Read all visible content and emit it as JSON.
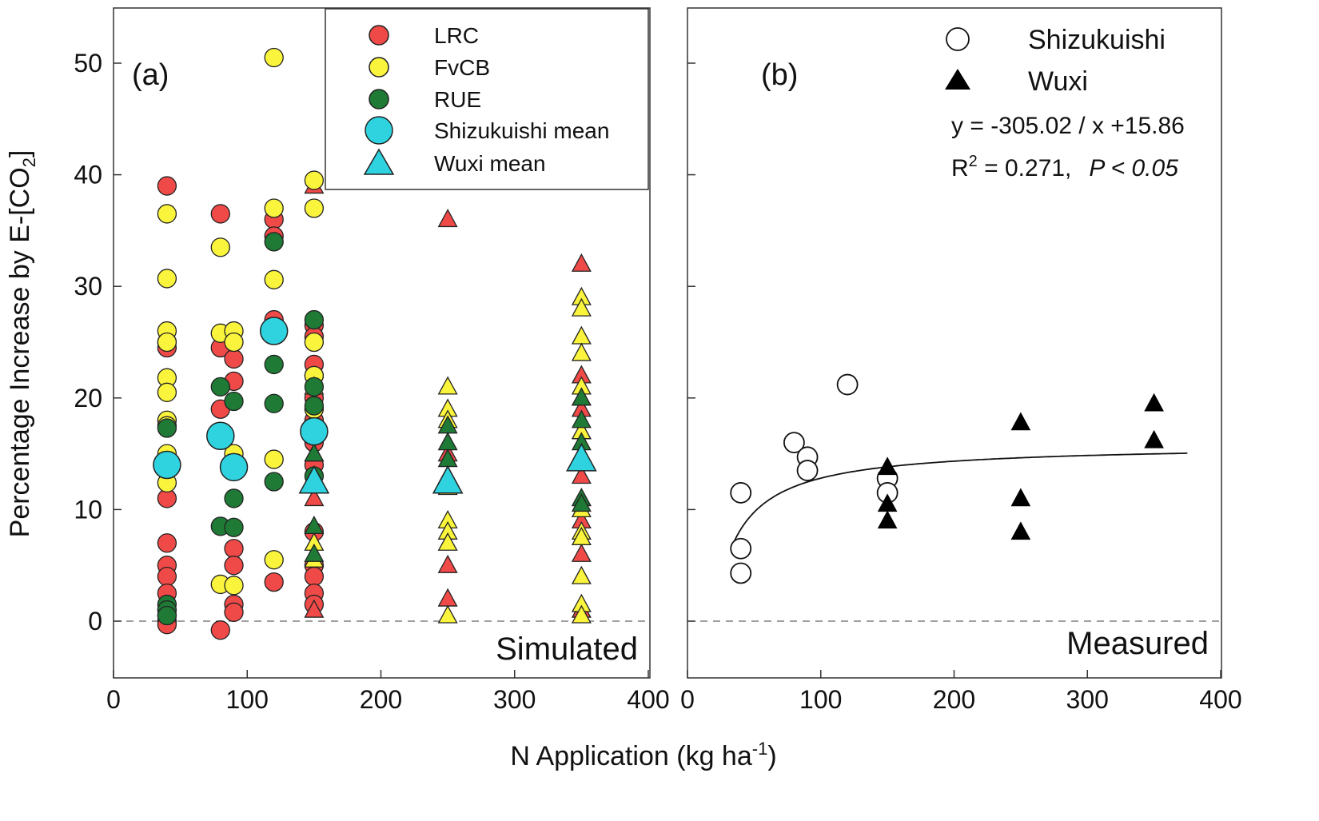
{
  "figure": {
    "y_axis_title_main": "Percentage Increase by E-[CO",
    "y_axis_title_sub": "2",
    "y_axis_title_end": "]",
    "x_axis_title_main": "N Application (kg ha",
    "x_axis_title_sup": "-1",
    "x_axis_title_end": ")"
  },
  "colors": {
    "LRC": "#f04a48",
    "FvCB": "#fbf43c",
    "RUE": "#1e7a35",
    "mean": "#2fd3df",
    "measured_triangle": "#000000",
    "measured_circle": "#ffffff"
  },
  "chart_data": [
    {
      "type": "scatter",
      "panel_label": "(a)",
      "corner_tag": "Simulated",
      "xlim": [
        0,
        400
      ],
      "ylim": [
        -5,
        55
      ],
      "x_ticks": [
        "0",
        "100",
        "200",
        "300",
        "400"
      ],
      "y_ticks": [
        "0",
        "10",
        "20",
        "30",
        "40",
        "50"
      ],
      "reference_line_y": 0,
      "legend": [
        "LRC",
        "FvCB",
        "RUE",
        "Shizukuishi mean",
        "Wuxi mean"
      ],
      "series": [
        {
          "name": "LRC",
          "marker": "circle",
          "color_key": "LRC",
          "points": [
            [
              40,
              39
            ],
            [
              40,
              25
            ],
            [
              40,
              24.5
            ],
            [
              40,
              11
            ],
            [
              40,
              7
            ],
            [
              40,
              5
            ],
            [
              40,
              4
            ],
            [
              40,
              2.5
            ],
            [
              40,
              1
            ],
            [
              40,
              0.5
            ],
            [
              40,
              0
            ],
            [
              40,
              -0.3
            ],
            [
              80,
              36.5
            ],
            [
              80,
              24.5
            ],
            [
              80,
              19
            ],
            [
              80,
              -0.8
            ],
            [
              90,
              23.5
            ],
            [
              90,
              21.5
            ],
            [
              90,
              6.5
            ],
            [
              90,
              5
            ],
            [
              90,
              1.5
            ],
            [
              90,
              0.8
            ],
            [
              120,
              36
            ],
            [
              120,
              34.5
            ],
            [
              120,
              27
            ],
            [
              120,
              3.5
            ],
            [
              150,
              26.5
            ],
            [
              150,
              25.5
            ],
            [
              150,
              23
            ],
            [
              150,
              22
            ],
            [
              150,
              20
            ],
            [
              150,
              18
            ],
            [
              150,
              16
            ],
            [
              150,
              14
            ],
            [
              150,
              8
            ],
            [
              150,
              5
            ],
            [
              150,
              4
            ],
            [
              150,
              2.5
            ],
            [
              150,
              1.5
            ]
          ]
        },
        {
          "name": "LRC",
          "marker": "triangle",
          "color_key": "LRC",
          "points": [
            [
              150,
              39
            ],
            [
              150,
              11
            ],
            [
              150,
              1
            ],
            [
              250,
              36
            ],
            [
              250,
              15
            ],
            [
              250,
              5
            ],
            [
              250,
              2
            ],
            [
              350,
              32
            ],
            [
              350,
              22
            ],
            [
              350,
              19
            ],
            [
              350,
              17
            ],
            [
              350,
              13
            ],
            [
              350,
              9
            ],
            [
              350,
              6
            ],
            [
              350,
              1
            ]
          ]
        },
        {
          "name": "FvCB",
          "marker": "circle",
          "color_key": "FvCB",
          "points": [
            [
              40,
              36.5
            ],
            [
              40,
              30.7
            ],
            [
              40,
              26
            ],
            [
              40,
              25
            ],
            [
              40,
              21.8
            ],
            [
              40,
              20.5
            ],
            [
              40,
              18
            ],
            [
              40,
              17.5
            ],
            [
              40,
              15
            ],
            [
              40,
              12.4
            ],
            [
              80,
              33.5
            ],
            [
              80,
              25.8
            ],
            [
              80,
              3.3
            ],
            [
              90,
              26
            ],
            [
              90,
              25
            ],
            [
              90,
              15
            ],
            [
              90,
              14
            ],
            [
              90,
              3.2
            ],
            [
              120,
              50.5
            ],
            [
              120,
              37
            ],
            [
              120,
              30.6
            ],
            [
              120,
              14.5
            ],
            [
              120,
              5.5
            ],
            [
              150,
              39.5
            ],
            [
              150,
              37
            ],
            [
              150,
              25
            ],
            [
              150,
              22
            ],
            [
              150,
              19
            ]
          ]
        },
        {
          "name": "FvCB",
          "marker": "triangle",
          "color_key": "FvCB",
          "points": [
            [
              150,
              21
            ],
            [
              150,
              15
            ],
            [
              150,
              7
            ],
            [
              150,
              5.5
            ],
            [
              250,
              21
            ],
            [
              250,
              19
            ],
            [
              250,
              18
            ],
            [
              250,
              12
            ],
            [
              250,
              9
            ],
            [
              250,
              8
            ],
            [
              250,
              7
            ],
            [
              250,
              0.5
            ],
            [
              350,
              29
            ],
            [
              350,
              28
            ],
            [
              350,
              25.5
            ],
            [
              350,
              24
            ],
            [
              350,
              21
            ],
            [
              350,
              20
            ],
            [
              350,
              17
            ],
            [
              350,
              11
            ],
            [
              350,
              10
            ],
            [
              350,
              8
            ],
            [
              350,
              7.5
            ],
            [
              350,
              4
            ],
            [
              350,
              1.5
            ],
            [
              350,
              0.5
            ]
          ]
        },
        {
          "name": "RUE",
          "marker": "circle",
          "color_key": "RUE",
          "points": [
            [
              40,
              17.3
            ],
            [
              40,
              1.5
            ],
            [
              40,
              1
            ],
            [
              40,
              0.5
            ],
            [
              80,
              21
            ],
            [
              80,
              8.5
            ],
            [
              90,
              19.7
            ],
            [
              90,
              11
            ],
            [
              90,
              8.4
            ],
            [
              120,
              34
            ],
            [
              120,
              23
            ],
            [
              120,
              19.5
            ],
            [
              120,
              12.5
            ],
            [
              150,
              27
            ],
            [
              150,
              21
            ],
            [
              150,
              19.3
            ],
            [
              150,
              13
            ]
          ]
        },
        {
          "name": "RUE",
          "marker": "triangle",
          "color_key": "RUE",
          "points": [
            [
              150,
              15
            ],
            [
              150,
              8.5
            ],
            [
              150,
              6
            ],
            [
              250,
              17.5
            ],
            [
              250,
              16
            ],
            [
              250,
              14.5
            ],
            [
              250,
              13
            ],
            [
              350,
              20
            ],
            [
              350,
              18
            ],
            [
              350,
              16
            ],
            [
              350,
              11
            ],
            [
              350,
              10.5
            ]
          ]
        },
        {
          "name": "Shizukuishi mean",
          "marker": "circle-large",
          "color_key": "mean",
          "points": [
            [
              40,
              14
            ],
            [
              80,
              16.6
            ],
            [
              90,
              13.8
            ],
            [
              120,
              26
            ],
            [
              150,
              17
            ]
          ]
        },
        {
          "name": "Wuxi mean",
          "marker": "triangle-large",
          "color_key": "mean",
          "points": [
            [
              150,
              12.5
            ],
            [
              250,
              12.5
            ],
            [
              350,
              14.5
            ]
          ]
        }
      ]
    },
    {
      "type": "scatter",
      "panel_label": "(b)",
      "corner_tag": "Measured",
      "xlim": [
        0,
        400
      ],
      "ylim": [
        -5,
        55
      ],
      "x_ticks": [
        "0",
        "100",
        "200",
        "300",
        "400"
      ],
      "y_ticks": [
        "0",
        "10",
        "20",
        "30",
        "40",
        "50"
      ],
      "reference_line_y": 0,
      "legend": [
        "Shizukuishi",
        "Wuxi"
      ],
      "equation": "y = -305.02 / x +15.86",
      "r2_prefix": "R",
      "r2_sup": "2",
      "r2_value": " = 0.271,",
      "p_value": "P < 0.05",
      "fit": {
        "a": -305.02,
        "b": 15.86,
        "x_range": [
          35,
          375
        ]
      },
      "series": [
        {
          "name": "Shizukuishi",
          "marker": "circle-open",
          "points": [
            [
              40,
              11.5
            ],
            [
              40,
              6.5
            ],
            [
              40,
              4.3
            ],
            [
              80,
              16
            ],
            [
              90,
              14.7
            ],
            [
              90,
              13.5
            ],
            [
              120,
              21.2
            ],
            [
              150,
              12.8
            ],
            [
              150,
              11.5
            ]
          ]
        },
        {
          "name": "Wuxi",
          "marker": "triangle-filled",
          "points": [
            [
              150,
              13.8
            ],
            [
              150,
              10.5
            ],
            [
              150,
              9
            ],
            [
              250,
              17.8
            ],
            [
              250,
              11
            ],
            [
              250,
              8
            ],
            [
              350,
              19.5
            ],
            [
              350,
              16.2
            ]
          ]
        }
      ]
    }
  ]
}
